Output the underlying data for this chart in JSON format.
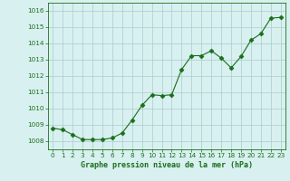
{
  "x": [
    0,
    1,
    2,
    3,
    4,
    5,
    6,
    7,
    8,
    9,
    10,
    11,
    12,
    13,
    14,
    15,
    16,
    17,
    18,
    19,
    20,
    21,
    22,
    23
  ],
  "y": [
    1008.8,
    1008.7,
    1008.4,
    1008.1,
    1008.1,
    1008.1,
    1008.2,
    1008.5,
    1009.3,
    1010.2,
    1010.85,
    1010.8,
    1010.85,
    1012.4,
    1013.25,
    1013.25,
    1013.55,
    1013.1,
    1012.5,
    1013.2,
    1014.2,
    1014.6,
    1015.55,
    1015.6
  ],
  "line_color": "#1a6e1a",
  "marker": "D",
  "marker_size": 2.5,
  "bg_color": "#d8f0f0",
  "grid_color": "#aacccc",
  "xlabel": "Graphe pression niveau de la mer (hPa)",
  "xlabel_color": "#1a6e1a",
  "tick_color": "#1a6e1a",
  "ylim": [
    1007.5,
    1016.5
  ],
  "yticks": [
    1008,
    1009,
    1010,
    1011,
    1012,
    1013,
    1014,
    1015,
    1016
  ],
  "xlim": [
    -0.5,
    23.5
  ],
  "xticks": [
    0,
    1,
    2,
    3,
    4,
    5,
    6,
    7,
    8,
    9,
    10,
    11,
    12,
    13,
    14,
    15,
    16,
    17,
    18,
    19,
    20,
    21,
    22,
    23
  ]
}
